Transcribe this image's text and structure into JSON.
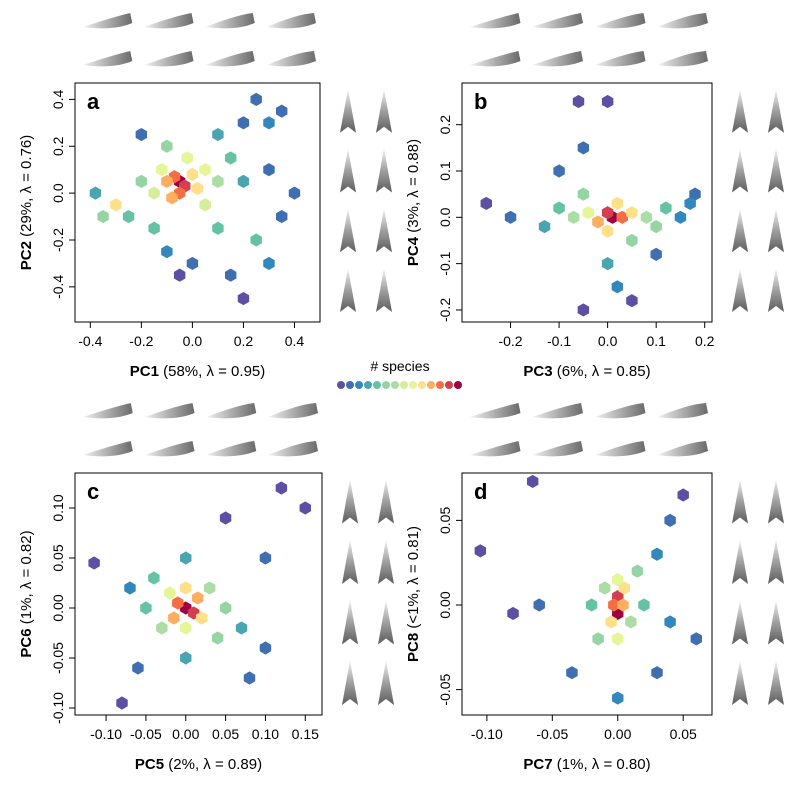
{
  "chart_data": [
    {
      "type": "hexbin",
      "panel_label": "a",
      "x_label": {
        "name": "PC1",
        "detail": "(58%, λ = 0.95)"
      },
      "y_label": {
        "name": "PC2",
        "detail": "(29%, λ = 0.76)"
      },
      "xlim": [
        -0.46,
        0.5
      ],
      "ylim": [
        -0.55,
        0.47
      ],
      "xticks": [
        -0.4,
        -0.2,
        {
          "value": 0,
          "label": "0.0"
        },
        0.2,
        0.4
      ],
      "yticks": [
        -0.4,
        -0.2,
        {
          "value": 0,
          "label": "0.0"
        },
        0.2,
        0.4
      ],
      "x": [
        -0.05,
        -0.03,
        -0.07,
        -0.05,
        -0.1,
        0.0,
        -0.08,
        0.02,
        -0.12,
        0.05,
        -0.15,
        0.05,
        -0.02,
        0.1,
        -0.2,
        -0.3,
        -0.35,
        -0.25,
        0.1,
        0.15,
        0.2,
        0.25,
        0.3,
        0.35,
        0.2,
        0.3,
        -0.1,
        0.0,
        0.15,
        -0.2,
        0.25,
        0.4,
        0.2,
        -0.05,
        -0.38,
        0.1,
        -0.1,
        0.3,
        0.35,
        -0.15
      ],
      "y": [
        0.05,
        0.03,
        0.07,
        0.0,
        0.05,
        0.08,
        -0.02,
        0.02,
        0.1,
        0.1,
        0.0,
        -0.05,
        0.15,
        0.05,
        0.05,
        -0.05,
        -0.1,
        -0.1,
        -0.15,
        0.15,
        0.05,
        -0.2,
        0.3,
        0.35,
        0.3,
        -0.3,
        -0.25,
        -0.3,
        -0.35,
        0.25,
        0.4,
        0.0,
        -0.45,
        -0.35,
        0.0,
        0.25,
        0.2,
        0.1,
        -0.1,
        -0.15
      ],
      "values": [
        13,
        12,
        11,
        11,
        10,
        9,
        10,
        9,
        8,
        8,
        7,
        7,
        8,
        6,
        5,
        9,
        5,
        4,
        4,
        4,
        3,
        4,
        2,
        1,
        1,
        2,
        2,
        1,
        1,
        1,
        1,
        1,
        0,
        0,
        3,
        3,
        5,
        1,
        1,
        4
      ]
    },
    {
      "type": "hexbin",
      "panel_label": "b",
      "x_label": {
        "name": "PC3",
        "detail": "(6%, λ = 0.85)"
      },
      "y_label": {
        "name": "PC4",
        "detail": "(3%, λ = 0.88)"
      },
      "xlim": [
        -0.3,
        0.215
      ],
      "ylim": [
        -0.226,
        0.29
      ],
      "xticks": [
        -0.2,
        -0.1,
        {
          "value": 0,
          "label": "0.0"
        },
        0.1,
        0.2
      ],
      "yticks": [
        -0.2,
        -0.1,
        {
          "value": 0,
          "label": "0.0"
        },
        0.1,
        0.2
      ],
      "x": [
        0.01,
        0.0,
        0.03,
        -0.02,
        0.05,
        -0.04,
        0.0,
        0.02,
        0.08,
        -0.07,
        0.1,
        -0.1,
        0.12,
        -0.13,
        0.15,
        -0.05,
        0.05,
        -0.1,
        -0.05,
        -0.06,
        0.0,
        0.0,
        0.02,
        0.05,
        -0.05,
        0.18,
        -0.2,
        -0.25,
        0.17,
        0.1
      ],
      "y": [
        0.0,
        0.01,
        0.0,
        -0.01,
        0.01,
        0.01,
        -0.03,
        0.03,
        0.0,
        0.0,
        -0.02,
        0.02,
        0.02,
        -0.02,
        0.0,
        0.05,
        -0.05,
        0.1,
        0.15,
        0.25,
        0.25,
        -0.1,
        -0.15,
        -0.18,
        -0.2,
        0.05,
        0.0,
        0.03,
        0.03,
        -0.08
      ],
      "values": [
        13,
        12,
        11,
        10,
        9,
        8,
        9,
        9,
        6,
        6,
        5,
        4,
        4,
        3,
        2,
        5,
        5,
        1,
        1,
        0,
        0,
        3,
        2,
        0,
        0,
        1,
        1,
        0,
        2,
        1
      ]
    },
    {
      "type": "hexbin",
      "panel_label": "c",
      "x_label": {
        "name": "PC5",
        "detail": "(2%, λ = 0.89)"
      },
      "y_label": {
        "name": "PC6",
        "detail": "(1%, λ = 0.82)"
      },
      "xlim": [
        -0.139,
        0.171
      ],
      "ylim": [
        -0.107,
        0.135
      ],
      "xticks": [
        {
          "value": -0.1,
          "label": "-0.10"
        },
        -0.05,
        {
          "value": 0,
          "label": "0.00"
        },
        0.05,
        {
          "value": 0.1,
          "label": "0.10"
        },
        0.15
      ],
      "yticks": [
        {
          "value": -0.1,
          "label": "-0.10"
        },
        -0.05,
        {
          "value": 0,
          "label": "0.00"
        },
        0.05,
        {
          "value": 0.1,
          "label": "0.10"
        }
      ],
      "x": [
        0.0,
        0.01,
        -0.01,
        0.015,
        -0.015,
        0.02,
        -0.02,
        0.0,
        0.0,
        0.03,
        -0.03,
        0.04,
        -0.04,
        0.05,
        -0.05,
        0.07,
        -0.07,
        0.0,
        0.0,
        0.1,
        0.12,
        0.15,
        -0.115,
        -0.08,
        0.08,
        -0.06,
        0.05,
        0.1
      ],
      "y": [
        0.0,
        -0.005,
        0.005,
        0.01,
        -0.01,
        -0.01,
        0.015,
        0.02,
        -0.02,
        0.02,
        -0.02,
        -0.03,
        0.03,
        0.0,
        0.0,
        -0.02,
        0.02,
        0.05,
        -0.05,
        0.05,
        0.12,
        0.1,
        0.045,
        -0.095,
        -0.07,
        -0.06,
        0.09,
        -0.04
      ],
      "values": [
        13,
        12,
        11,
        10,
        10,
        9,
        8,
        9,
        8,
        6,
        6,
        5,
        4,
        5,
        4,
        3,
        2,
        3,
        3,
        1,
        0,
        0,
        0,
        0,
        1,
        1,
        0,
        1
      ]
    },
    {
      "type": "hexbin",
      "panel_label": "d",
      "x_label": {
        "name": "PC7",
        "detail": "(1%, λ = 0.80)"
      },
      "y_label": {
        "name": "PC8",
        "detail": "(<1%, λ = 0.81)"
      },
      "xlim": [
        -0.119,
        0.072
      ],
      "ylim": [
        -0.065,
        0.078
      ],
      "xticks": [
        {
          "value": -0.1,
          "label": "-0.10"
        },
        -0.05,
        {
          "value": 0,
          "label": "0.00"
        },
        0.05
      ],
      "yticks": [
        -0.05,
        {
          "value": 0,
          "label": "0.00"
        },
        0.05
      ],
      "x": [
        0.0,
        0.0,
        -0.003,
        0.004,
        -0.005,
        0.005,
        0.0,
        0.0,
        -0.01,
        0.01,
        0.015,
        -0.015,
        0.02,
        -0.02,
        0.03,
        0.04,
        0.05,
        -0.035,
        0.03,
        0.0,
        -0.06,
        -0.065,
        -0.105,
        -0.08,
        0.06,
        0.04
      ],
      "y": [
        -0.005,
        0.005,
        0.0,
        0.0,
        -0.01,
        0.01,
        0.015,
        -0.02,
        0.01,
        -0.01,
        0.02,
        -0.02,
        0.0,
        0.0,
        0.03,
        0.05,
        0.065,
        -0.04,
        -0.04,
        -0.055,
        0.0,
        0.073,
        0.032,
        -0.005,
        -0.02,
        -0.01
      ],
      "values": [
        13,
        12,
        11,
        10,
        9,
        9,
        8,
        8,
        6,
        6,
        5,
        5,
        4,
        4,
        2,
        1,
        0,
        1,
        1,
        2,
        1,
        0,
        0,
        0,
        1,
        2
      ]
    }
  ],
  "colorbar": {
    "label": "# species",
    "colors": [
      "#5e4fa2",
      "#3f6fb0",
      "#3288bd",
      "#4ba5b1",
      "#66c2a5",
      "#96d4a4",
      "#abdda4",
      "#d6ee9b",
      "#e6f598",
      "#fee08b",
      "#fdae61",
      "#f46d43",
      "#d53e4f",
      "#9e0142"
    ]
  }
}
